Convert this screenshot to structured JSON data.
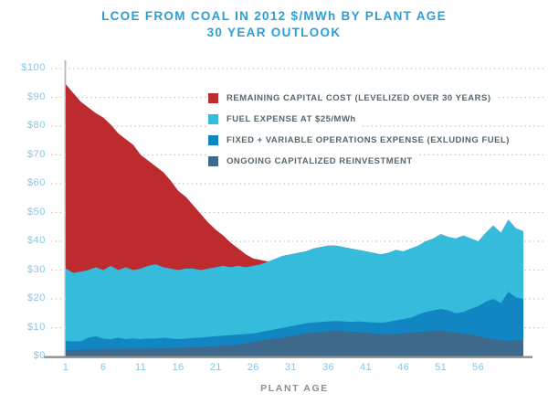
{
  "title": {
    "line1": "LCOE FROM COAL IN 2012 $/MWh BY PLANT AGE",
    "line2": "30 YEAR OUTLOOK"
  },
  "colors": {
    "title_text": "#2c9ed6",
    "axis_tick_text": "#89c5e3",
    "legend_text": "#55666f",
    "gridline": "#c9c9c9",
    "y_axis_line": "#b6b6b6",
    "x_axis_line": "#8f8f8f",
    "x_axis_title_text": "#8d8d8d"
  },
  "chart_data": {
    "type": "area",
    "stacked": true,
    "title": "LCOE FROM COAL IN 2012 $/MWh BY PLANT AGE",
    "subtitle": "30 YEAR OUTLOOK",
    "xlabel": "PLANT AGE",
    "ylabel": "",
    "ylim": [
      0,
      100
    ],
    "grid": "horizontal-dotted",
    "legend_position": "top-right-inside-plot",
    "y_tick_values": [
      0,
      10,
      20,
      30,
      40,
      50,
      60,
      70,
      80,
      90,
      100
    ],
    "y_tick_labels": [
      "$0",
      "$10",
      "$20",
      "$30",
      "$40",
      "$50",
      "$60",
      "$70",
      "$80",
      "$90",
      "$100"
    ],
    "x_ticks": [
      1,
      6,
      11,
      16,
      21,
      26,
      31,
      36,
      41,
      46,
      51,
      56
    ],
    "ages": [
      1,
      2,
      3,
      4,
      5,
      6,
      7,
      8,
      9,
      10,
      11,
      12,
      13,
      14,
      15,
      16,
      17,
      18,
      19,
      20,
      21,
      22,
      23,
      24,
      25,
      26,
      27,
      28,
      29,
      30,
      31,
      32,
      33,
      34,
      35,
      36,
      37,
      38,
      39,
      40,
      41,
      42,
      43,
      44,
      45,
      46,
      47,
      48,
      49,
      50,
      51,
      52,
      53,
      54,
      55,
      56,
      57,
      58,
      59,
      60,
      61,
      62
    ],
    "series": [
      {
        "id": "ongoing-capitalized-reinvestment",
        "name": "ONGOING CAPITALIZED REINVESTMENT",
        "color": "#3d698c",
        "values": [
          2.2,
          2.2,
          2.3,
          2.3,
          2.4,
          2.4,
          2.5,
          2.5,
          2.6,
          2.6,
          2.7,
          2.8,
          2.8,
          2.9,
          3.0,
          3.0,
          3.1,
          3.2,
          3.3,
          3.4,
          3.6,
          3.8,
          4.0,
          4.2,
          4.5,
          5.0,
          5.5,
          6.0,
          6.3,
          6.6,
          7.0,
          7.5,
          8.0,
          8.3,
          8.5,
          8.8,
          8.9,
          8.8,
          8.6,
          8.4,
          8.2,
          8.0,
          7.8,
          7.6,
          7.8,
          8.0,
          8.3,
          8.5,
          8.7,
          8.9,
          8.9,
          8.7,
          8.3,
          8.0,
          7.6,
          7.0,
          6.5,
          6.0,
          5.6,
          5.4,
          5.6,
          5.7
        ]
      },
      {
        "id": "fixed-variable-operations-expense",
        "name": "FIXED + VARIABLE OPERATIONS EXPENSE (EXLUDING FUEL)",
        "color": "#1186c2",
        "values": [
          3.2,
          3.0,
          3.0,
          4.2,
          4.6,
          3.8,
          3.5,
          4.0,
          3.4,
          3.7,
          3.3,
          3.5,
          3.4,
          3.6,
          3.3,
          3.0,
          3.1,
          3.2,
          3.3,
          3.4,
          3.4,
          3.4,
          3.4,
          3.4,
          3.3,
          3.0,
          3.0,
          3.0,
          3.2,
          3.4,
          3.5,
          3.5,
          3.5,
          3.5,
          3.5,
          3.4,
          3.4,
          3.4,
          3.4,
          3.8,
          3.8,
          3.8,
          3.9,
          4.4,
          4.7,
          5.0,
          5.2,
          6.0,
          6.8,
          7.1,
          7.6,
          7.3,
          6.7,
          7.5,
          8.9,
          10.5,
          12.5,
          14.0,
          12.9,
          17.1,
          14.9,
          14.3
        ]
      },
      {
        "id": "fuel-expense",
        "name": "FUEL EXPENSE AT $25/MWh",
        "color": "#35bcdc",
        "values": [
          25.1,
          23.8,
          24.2,
          23.5,
          24.0,
          23.8,
          25.5,
          23.5,
          25.0,
          23.7,
          24.5,
          25.2,
          25.8,
          24.5,
          24.2,
          24.0,
          24.3,
          24.1,
          23.4,
          23.7,
          24.0,
          24.3,
          23.6,
          23.9,
          23.2,
          23.5,
          23.5,
          24.0,
          24.5,
          25.0,
          25.0,
          25.0,
          25.0,
          25.7,
          26.0,
          26.3,
          26.2,
          25.8,
          25.5,
          24.8,
          24.5,
          24.2,
          23.8,
          24.0,
          24.5,
          23.5,
          24.0,
          24.0,
          24.5,
          25.0,
          26.0,
          25.5,
          26.0,
          26.5,
          24.5,
          22.5,
          24.0,
          25.5,
          24.5,
          25.0,
          24.0,
          23.5
        ]
      },
      {
        "id": "remaining-capital-cost",
        "name": "REMAINING CAPITAL COST (LEVELIZED OVER 30 YEARS)",
        "color": "#bd2b2f",
        "values": [
          64.0,
          62.5,
          59.0,
          56.5,
          53.5,
          53.0,
          49.0,
          47.5,
          44.5,
          43.5,
          39.5,
          36.5,
          34.0,
          33.0,
          30.5,
          27.5,
          25.0,
          22.0,
          19.5,
          16.0,
          13.0,
          10.5,
          8.5,
          6.0,
          4.5,
          2.5,
          1.5,
          0,
          0,
          0,
          0,
          0,
          0,
          0,
          0,
          0,
          0,
          0,
          0,
          0,
          0,
          0,
          0,
          0,
          0,
          0,
          0,
          0,
          0,
          0,
          0,
          0,
          0,
          0,
          0,
          0,
          0,
          0,
          0,
          0,
          0,
          0
        ]
      }
    ]
  }
}
